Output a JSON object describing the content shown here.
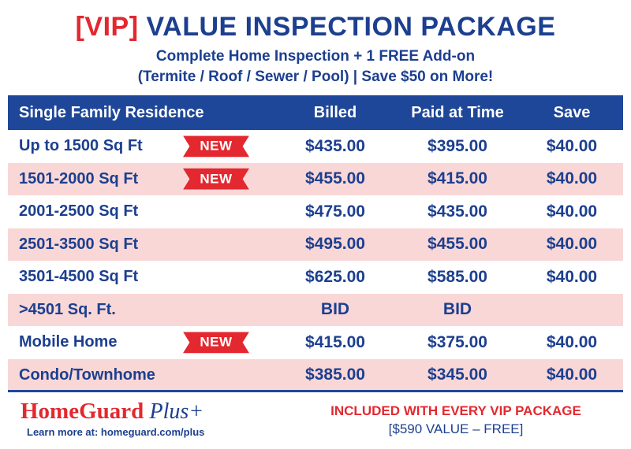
{
  "header": {
    "vip": "[VIP]",
    "title": "VALUE INSPECTION PACKAGE",
    "subtitle1": "Complete Home Inspection + 1 FREE Add-on",
    "subtitle2": "(Termite / Roof / Sewer / Pool) | Save $50 on More!"
  },
  "table": {
    "headers": [
      "Single Family Residence",
      "Billed",
      "Paid at Time",
      "Save"
    ],
    "rows": [
      {
        "label": "Up to 1500 Sq Ft",
        "badge": "NEW",
        "billed": "$435.00",
        "paid": "$395.00",
        "save": "$40.00"
      },
      {
        "label": "1501-2000 Sq Ft",
        "badge": "NEW",
        "billed": "$455.00",
        "paid": "$415.00",
        "save": "$40.00"
      },
      {
        "label": "2001-2500 Sq Ft",
        "badge": "",
        "billed": "$475.00",
        "paid": "$435.00",
        "save": "$40.00"
      },
      {
        "label": "2501-3500 Sq Ft",
        "badge": "",
        "billed": "$495.00",
        "paid": "$455.00",
        "save": "$40.00"
      },
      {
        "label": "3501-4500 Sq Ft",
        "badge": "",
        "billed": "$625.00",
        "paid": "$585.00",
        "save": "$40.00"
      },
      {
        "label": ">4501 Sq. Ft.",
        "badge": "",
        "billed": "BID",
        "paid": "BID",
        "save": ""
      },
      {
        "label": "Mobile Home",
        "badge": "NEW",
        "billed": "$415.00",
        "paid": "$375.00",
        "save": "$40.00"
      },
      {
        "label": "Condo/Townhome",
        "badge": "",
        "billed": "$385.00",
        "paid": "$345.00",
        "save": "$40.00"
      }
    ]
  },
  "footer": {
    "logo_main": "HomeGuard",
    "logo_plus": "Plus+",
    "learn_more": "Learn more at: homeguard.com/plus",
    "included": "INCLUDED WITH EVERY VIP PACKAGE",
    "value": "[$590 VALUE – FREE]"
  },
  "colors": {
    "navy": "#1c3f8f",
    "header_bg": "#1e4799",
    "red": "#e3282f",
    "row_alt": "#f9d7d7"
  }
}
